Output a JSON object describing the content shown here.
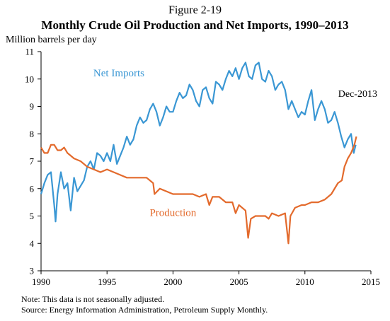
{
  "figure_label": "Figure 2-19",
  "notes": {
    "note": "Note: This data is not seasonally adjusted.",
    "source": "Source: Energy Information Administration,  Petroleum Supply Monthly."
  },
  "colors": {
    "net_imports": "#3a97d4",
    "production": "#e36a2c",
    "axis": "#000000"
  },
  "chart_data": {
    "type": "line",
    "title": "Monthly Crude Oil Production and Net Imports, 1990–2013",
    "ylabel": "Million barrels per day",
    "xlabel": "",
    "xlim": [
      1990,
      2015
    ],
    "ylim": [
      3,
      11
    ],
    "x_ticks": [
      "1990",
      "1995",
      "2000",
      "2005",
      "2010",
      "2015"
    ],
    "y_ticks": [
      "3",
      "4",
      "5",
      "6",
      "7",
      "8",
      "9",
      "10",
      "11"
    ],
    "grid": false,
    "annotations": [
      {
        "text": "Dec-2013",
        "x": 2014.0,
        "y": 7.6
      }
    ],
    "series": [
      {
        "name": "Net Imports",
        "label_at": [
          1995.9,
          10.1
        ],
        "points": [
          [
            1990.0,
            5.8
          ],
          [
            1990.25,
            6.2
          ],
          [
            1990.5,
            6.5
          ],
          [
            1990.75,
            6.6
          ],
          [
            1991.0,
            5.4
          ],
          [
            1991.1,
            4.8
          ],
          [
            1991.25,
            5.8
          ],
          [
            1991.5,
            6.6
          ],
          [
            1991.75,
            6.0
          ],
          [
            1992.0,
            6.2
          ],
          [
            1992.25,
            5.2
          ],
          [
            1992.5,
            6.4
          ],
          [
            1992.75,
            5.9
          ],
          [
            1993.0,
            6.1
          ],
          [
            1993.25,
            6.3
          ],
          [
            1993.5,
            6.8
          ],
          [
            1993.75,
            7.0
          ],
          [
            1994.0,
            6.7
          ],
          [
            1994.25,
            7.3
          ],
          [
            1994.5,
            7.2
          ],
          [
            1994.75,
            7.0
          ],
          [
            1995.0,
            7.3
          ],
          [
            1995.25,
            7.0
          ],
          [
            1995.5,
            7.6
          ],
          [
            1995.75,
            6.9
          ],
          [
            1996.0,
            7.2
          ],
          [
            1996.25,
            7.5
          ],
          [
            1996.5,
            7.9
          ],
          [
            1996.75,
            7.6
          ],
          [
            1997.0,
            7.8
          ],
          [
            1997.25,
            8.3
          ],
          [
            1997.5,
            8.6
          ],
          [
            1997.75,
            8.4
          ],
          [
            1998.0,
            8.5
          ],
          [
            1998.25,
            8.9
          ],
          [
            1998.5,
            9.1
          ],
          [
            1998.75,
            8.8
          ],
          [
            1999.0,
            8.3
          ],
          [
            1999.25,
            8.6
          ],
          [
            1999.5,
            9.0
          ],
          [
            1999.75,
            8.8
          ],
          [
            2000.0,
            8.8
          ],
          [
            2000.25,
            9.2
          ],
          [
            2000.5,
            9.5
          ],
          [
            2000.75,
            9.3
          ],
          [
            2001.0,
            9.4
          ],
          [
            2001.25,
            9.8
          ],
          [
            2001.5,
            9.6
          ],
          [
            2001.75,
            9.2
          ],
          [
            2002.0,
            9.0
          ],
          [
            2002.25,
            9.6
          ],
          [
            2002.5,
            9.7
          ],
          [
            2002.75,
            9.3
          ],
          [
            2003.0,
            9.1
          ],
          [
            2003.25,
            9.9
          ],
          [
            2003.5,
            9.8
          ],
          [
            2003.75,
            9.6
          ],
          [
            2004.0,
            10.0
          ],
          [
            2004.25,
            10.3
          ],
          [
            2004.5,
            10.1
          ],
          [
            2004.75,
            10.4
          ],
          [
            2005.0,
            10.0
          ],
          [
            2005.25,
            10.4
          ],
          [
            2005.5,
            10.6
          ],
          [
            2005.75,
            10.1
          ],
          [
            2006.0,
            10.0
          ],
          [
            2006.25,
            10.5
          ],
          [
            2006.5,
            10.6
          ],
          [
            2006.75,
            10.0
          ],
          [
            2007.0,
            9.9
          ],
          [
            2007.25,
            10.3
          ],
          [
            2007.5,
            10.1
          ],
          [
            2007.75,
            9.6
          ],
          [
            2008.0,
            9.8
          ],
          [
            2008.25,
            9.9
          ],
          [
            2008.5,
            9.6
          ],
          [
            2008.75,
            8.9
          ],
          [
            2009.0,
            9.2
          ],
          [
            2009.25,
            8.9
          ],
          [
            2009.5,
            8.6
          ],
          [
            2009.75,
            8.8
          ],
          [
            2010.0,
            8.7
          ],
          [
            2010.25,
            9.2
          ],
          [
            2010.5,
            9.6
          ],
          [
            2010.75,
            8.5
          ],
          [
            2011.0,
            8.9
          ],
          [
            2011.25,
            9.2
          ],
          [
            2011.5,
            8.9
          ],
          [
            2011.75,
            8.4
          ],
          [
            2012.0,
            8.5
          ],
          [
            2012.25,
            8.8
          ],
          [
            2012.5,
            8.4
          ],
          [
            2012.75,
            7.9
          ],
          [
            2013.0,
            7.5
          ],
          [
            2013.25,
            7.8
          ],
          [
            2013.5,
            8.0
          ],
          [
            2013.7,
            7.3
          ],
          [
            2013.85,
            7.6
          ]
        ]
      },
      {
        "name": "Production",
        "label_at": [
          2000.0,
          5.0
        ],
        "points": [
          [
            1990.0,
            7.5
          ],
          [
            1990.25,
            7.3
          ],
          [
            1990.5,
            7.3
          ],
          [
            1990.75,
            7.6
          ],
          [
            1991.0,
            7.6
          ],
          [
            1991.25,
            7.4
          ],
          [
            1991.5,
            7.4
          ],
          [
            1991.75,
            7.5
          ],
          [
            1992.0,
            7.3
          ],
          [
            1992.5,
            7.1
          ],
          [
            1993.0,
            7.0
          ],
          [
            1993.5,
            6.8
          ],
          [
            1994.0,
            6.7
          ],
          [
            1994.5,
            6.6
          ],
          [
            1995.0,
            6.7
          ],
          [
            1995.5,
            6.6
          ],
          [
            1996.0,
            6.5
          ],
          [
            1996.5,
            6.4
          ],
          [
            1997.0,
            6.4
          ],
          [
            1997.5,
            6.4
          ],
          [
            1998.0,
            6.4
          ],
          [
            1998.5,
            6.2
          ],
          [
            1998.6,
            5.8
          ],
          [
            1999.0,
            6.0
          ],
          [
            1999.5,
            5.9
          ],
          [
            2000.0,
            5.8
          ],
          [
            2000.5,
            5.8
          ],
          [
            2001.0,
            5.8
          ],
          [
            2001.5,
            5.8
          ],
          [
            2002.0,
            5.7
          ],
          [
            2002.5,
            5.8
          ],
          [
            2002.75,
            5.4
          ],
          [
            2003.0,
            5.7
          ],
          [
            2003.5,
            5.7
          ],
          [
            2004.0,
            5.5
          ],
          [
            2004.5,
            5.5
          ],
          [
            2004.75,
            5.1
          ],
          [
            2005.0,
            5.4
          ],
          [
            2005.5,
            5.2
          ],
          [
            2005.7,
            4.2
          ],
          [
            2005.9,
            4.9
          ],
          [
            2006.25,
            5.0
          ],
          [
            2006.75,
            5.0
          ],
          [
            2007.0,
            5.0
          ],
          [
            2007.25,
            4.9
          ],
          [
            2007.5,
            5.1
          ],
          [
            2008.0,
            5.0
          ],
          [
            2008.5,
            5.1
          ],
          [
            2008.75,
            4.0
          ],
          [
            2008.9,
            5.0
          ],
          [
            2009.25,
            5.3
          ],
          [
            2009.75,
            5.4
          ],
          [
            2010.0,
            5.4
          ],
          [
            2010.5,
            5.5
          ],
          [
            2011.0,
            5.5
          ],
          [
            2011.5,
            5.6
          ],
          [
            2012.0,
            5.8
          ],
          [
            2012.5,
            6.2
          ],
          [
            2012.8,
            6.3
          ],
          [
            2013.0,
            6.8
          ],
          [
            2013.25,
            7.1
          ],
          [
            2013.5,
            7.3
          ],
          [
            2013.75,
            7.6
          ],
          [
            2013.9,
            7.9
          ]
        ]
      }
    ]
  }
}
